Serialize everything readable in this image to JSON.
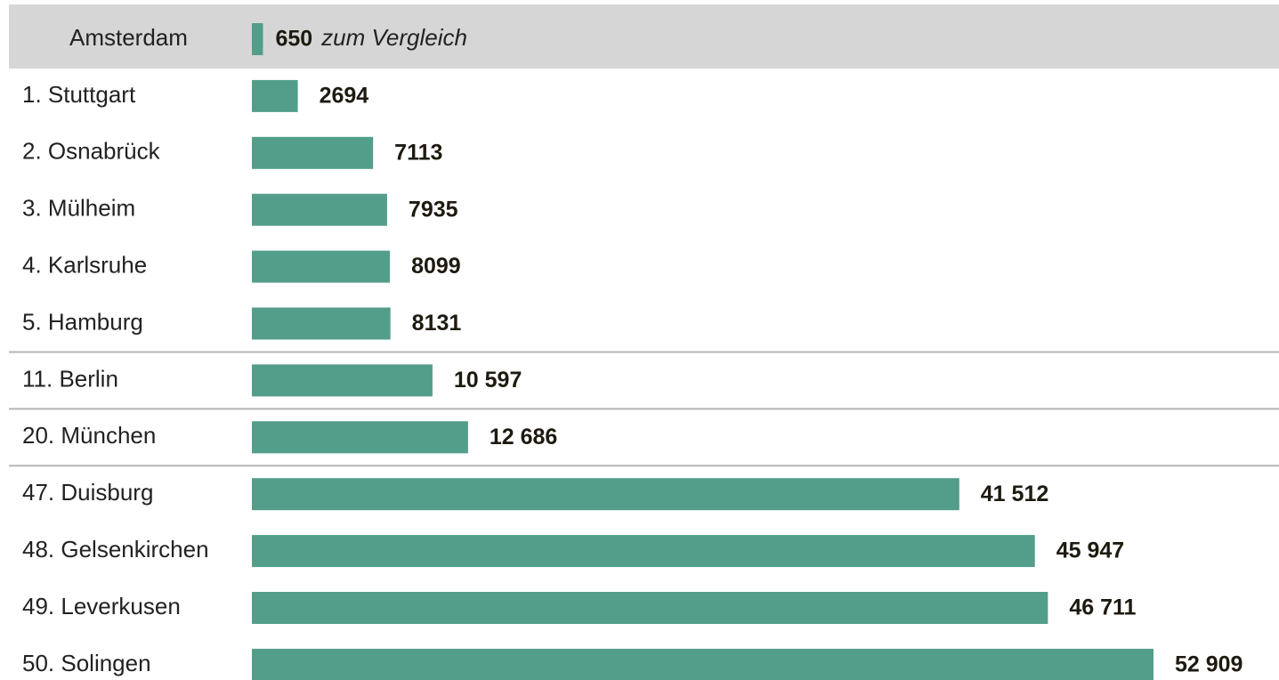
{
  "chart_data": {
    "type": "bar",
    "orientation": "horizontal",
    "color": "#529e8a",
    "categories": [
      "Amsterdam",
      "1. Stuttgart",
      "2. Osnabrück",
      "3. Mülheim",
      "4. Karlsruhe",
      "5. Hamburg",
      "11. Berlin",
      "20. München",
      "47. Duisburg",
      "48. Gelsenkirchen",
      "49. Leverkusen",
      "50. Solingen"
    ],
    "values": [
      650,
      2694,
      7113,
      7935,
      8099,
      8131,
      10597,
      12686,
      41512,
      45947,
      46711,
      52909
    ],
    "value_labels": [
      "650",
      "2694",
      "7113",
      "7935",
      "8099",
      "8131",
      "10 597",
      "12 686",
      "41 512",
      "45 947",
      "46 711",
      "52 909"
    ],
    "annotation": "zum Vergleich"
  }
}
